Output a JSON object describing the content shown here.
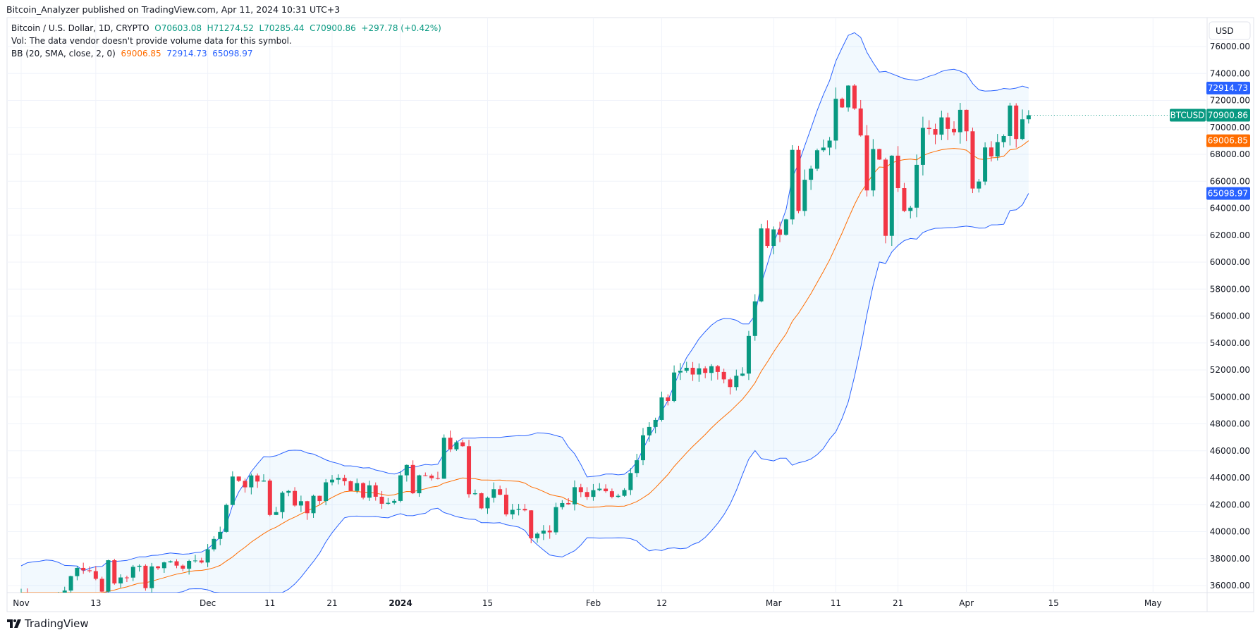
{
  "publish_line": "Bitcoin_Analyzer published on TradingView.com, Apr 11, 2024 10:31 UTC+3",
  "legend": {
    "symbol": "Bitcoin / U.S. Dollar, 1D, CRYPTO",
    "open": "O70603.08",
    "high": "H71274.52",
    "low": "L70285.44",
    "close": "C70900.86",
    "change": "+297.78 (+0.42%)",
    "vol": "Vol: The data vendor doesn't provide volume data for this symbol.",
    "bb_label": "BB (20, SMA, close, 2, 0)",
    "bb_basis": "69006.85",
    "bb_upper": "72914.73",
    "bb_lower": "65098.97"
  },
  "currency_button": "USD",
  "symbol_tag": "BTCUSD",
  "logo_text": "TradingView",
  "colors": {
    "up": "#089981",
    "down": "#f23645",
    "bb_band": "#2962ff",
    "bb_basis": "#ff6d00",
    "bb_fill": "#2196f3"
  },
  "chart_data": {
    "type": "candlestick",
    "interval": "1D",
    "x_start": "2023-11-01",
    "ylim": [
      35000,
      77000
    ],
    "grid": true,
    "y_ticks": [
      "76000.00",
      "74000.00",
      "72000.00",
      "70000.00",
      "68000.00",
      "66000.00",
      "64000.00",
      "62000.00",
      "60000.00",
      "58000.00",
      "56000.00",
      "54000.00",
      "52000.00",
      "50000.00",
      "48000.00",
      "46000.00",
      "44000.00",
      "42000.00",
      "40000.00",
      "38000.00",
      "36000.00"
    ],
    "x_ticks": [
      {
        "label": "Nov",
        "date": "2023-11-01"
      },
      {
        "label": "13",
        "date": "2023-11-13"
      },
      {
        "label": "Dec",
        "date": "2023-12-01"
      },
      {
        "label": "11",
        "date": "2023-12-11"
      },
      {
        "label": "21",
        "date": "2023-12-21"
      },
      {
        "label": "2024",
        "date": "2024-01-01"
      },
      {
        "label": "15",
        "date": "2024-01-15"
      },
      {
        "label": "Feb",
        "date": "2024-02-01"
      },
      {
        "label": "12",
        "date": "2024-02-12"
      },
      {
        "label": "Mar",
        "date": "2024-03-01"
      },
      {
        "label": "11",
        "date": "2024-03-11"
      },
      {
        "label": "21",
        "date": "2024-03-21"
      },
      {
        "label": "Apr",
        "date": "2024-04-01"
      },
      {
        "label": "15",
        "date": "2024-04-15"
      },
      {
        "label": "May",
        "date": "2024-05-01"
      }
    ],
    "close": [
      35420,
      34940,
      34730,
      35080,
      35050,
      35040,
      35420,
      35630,
      36700,
      37310,
      37130,
      37070,
      36500,
      35550,
      37880,
      36160,
      36600,
      36590,
      37390,
      37470,
      35810,
      37420,
      37290,
      37720,
      37800,
      37480,
      37250,
      37830,
      37860,
      37710,
      38690,
      39460,
      39980,
      41980,
      44090,
      43770,
      43290,
      44170,
      43720,
      43790,
      41240,
      41450,
      42890,
      43020,
      41940,
      42260,
      41370,
      42660,
      42270,
      43660,
      43860,
      43990,
      43740,
      43020,
      43600,
      42520,
      43440,
      42590,
      42070,
      42140,
      42280,
      44180,
      44950,
      42850,
      44180,
      44160,
      43970,
      43930,
      46970,
      46110,
      46630,
      46340,
      42780,
      42850,
      41730,
      42510,
      43150,
      42740,
      41280,
      41620,
      41690,
      41580,
      39510,
      39850,
      40080,
      39950,
      41820,
      42120,
      42030,
      43300,
      42940,
      42580,
      43080,
      43190,
      43000,
      42580,
      42660,
      43090,
      44350,
      45300,
      47150,
      47770,
      48290,
      49960,
      49700,
      51810,
      51940,
      52160,
      51660,
      52120,
      51780,
      52280,
      51850,
      51300,
      50730,
      51570,
      51730,
      54520,
      57090,
      62500,
      61200,
      62430,
      62030,
      63170,
      68330,
      63800,
      66110,
      66930,
      68300,
      68500,
      69020,
      72120,
      71480,
      73100,
      71400,
      69400,
      65320,
      68390,
      67610,
      61950,
      67900,
      65490,
      63800,
      64040,
      67220,
      69960,
      69880,
      69460,
      70740,
      69890,
      69640,
      71300,
      69710,
      65460,
      65980,
      68510,
      67840,
      68900,
      69360,
      71620,
      69140,
      70600,
      70900.86
    ],
    "last_candle": {
      "open": 70603.08,
      "high": 71274.52,
      "low": 70285.44,
      "close": 70900.86
    },
    "bollinger": {
      "length": 20,
      "mult": 2,
      "last_basis": 69006.85,
      "last_upper": 72914.73,
      "last_lower": 65098.97
    }
  }
}
